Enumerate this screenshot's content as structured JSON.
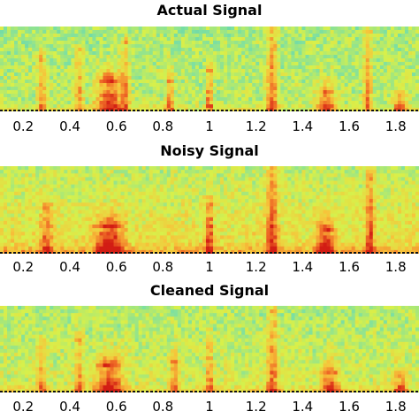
{
  "chart_data": [
    {
      "type": "heatmap",
      "title": "Actual Signal",
      "xlabel": "",
      "ylabel": "",
      "xlim": [
        0.1,
        1.9
      ],
      "xticks": [
        0.2,
        0.4,
        0.6,
        0.8,
        1,
        1.2,
        1.4,
        1.6,
        1.8
      ],
      "xtick_labels": [
        "0.2",
        "0.4",
        "0.6",
        "0.8",
        "1",
        "1.2",
        "1.4",
        "1.6",
        "1.8"
      ],
      "colormap": [
        "#3fc6c0",
        "#7fe0a0",
        "#d8f04a",
        "#f7c33a",
        "#ef6a26",
        "#d21d14"
      ],
      "noise_level": 0.15,
      "events": [
        {
          "x": 0.28,
          "width": 0.04,
          "intensity": 0.55,
          "height": 0.6
        },
        {
          "x": 0.44,
          "width": 0.04,
          "intensity": 0.5,
          "height": 0.7
        },
        {
          "x": 0.57,
          "width": 0.12,
          "intensity": 0.95,
          "height": 0.35
        },
        {
          "x": 0.64,
          "width": 0.04,
          "intensity": 0.5,
          "height": 0.8
        },
        {
          "x": 0.83,
          "width": 0.04,
          "intensity": 0.6,
          "height": 0.35
        },
        {
          "x": 1.0,
          "width": 0.03,
          "intensity": 0.9,
          "height": 0.45,
          "striped": true
        },
        {
          "x": 1.27,
          "width": 0.05,
          "intensity": 0.7,
          "height": 1.0
        },
        {
          "x": 1.5,
          "width": 0.08,
          "intensity": 0.85,
          "height": 0.2
        },
        {
          "x": 1.68,
          "width": 0.04,
          "intensity": 0.6,
          "height": 0.9
        },
        {
          "x": 1.82,
          "width": 0.06,
          "intensity": 0.75,
          "height": 0.15
        }
      ]
    },
    {
      "type": "heatmap",
      "title": "Noisy Signal",
      "xlabel": "",
      "ylabel": "",
      "xlim": [
        0.1,
        1.9
      ],
      "xticks": [
        0.2,
        0.4,
        0.6,
        0.8,
        1,
        1.2,
        1.4,
        1.6,
        1.8
      ],
      "xtick_labels": [
        "0.2",
        "0.4",
        "0.6",
        "0.8",
        "1",
        "1.2",
        "1.4",
        "1.6",
        "1.8"
      ],
      "colormap": [
        "#3fc6c0",
        "#7fe0a0",
        "#d8f04a",
        "#f7c33a",
        "#ef6a26",
        "#d21d14"
      ],
      "noise_level": 0.45,
      "events": [
        {
          "x": 0.3,
          "width": 0.05,
          "intensity": 0.55,
          "height": 0.5
        },
        {
          "x": 0.57,
          "width": 0.12,
          "intensity": 0.95,
          "height": 0.3
        },
        {
          "x": 1.0,
          "width": 0.03,
          "intensity": 0.95,
          "height": 0.5,
          "striped": true
        },
        {
          "x": 1.27,
          "width": 0.05,
          "intensity": 0.7,
          "height": 1.0
        },
        {
          "x": 1.5,
          "width": 0.08,
          "intensity": 0.85,
          "height": 0.25
        },
        {
          "x": 1.69,
          "width": 0.04,
          "intensity": 0.65,
          "height": 0.85
        }
      ]
    },
    {
      "type": "heatmap",
      "title": "Cleaned Signal",
      "xlabel": "",
      "ylabel": "",
      "xlim": [
        0.1,
        1.9
      ],
      "xticks": [
        0.2,
        0.4,
        0.6,
        0.8,
        1,
        1.2,
        1.4,
        1.6,
        1.8
      ],
      "xtick_labels": [
        "0.2",
        "0.4",
        "0.6",
        "0.8",
        "1",
        "1.2",
        "1.4",
        "1.6",
        "1.8"
      ],
      "colormap": [
        "#3fc6c0",
        "#7fe0a0",
        "#d8f04a",
        "#f7c33a",
        "#ef6a26",
        "#d21d14"
      ],
      "noise_level": 0.25,
      "events": [
        {
          "x": 0.28,
          "width": 0.04,
          "intensity": 0.5,
          "height": 0.5
        },
        {
          "x": 0.44,
          "width": 0.04,
          "intensity": 0.45,
          "height": 0.6
        },
        {
          "x": 0.57,
          "width": 0.12,
          "intensity": 0.9,
          "height": 0.3
        },
        {
          "x": 0.85,
          "width": 0.04,
          "intensity": 0.55,
          "height": 0.35
        },
        {
          "x": 1.0,
          "width": 0.03,
          "intensity": 0.8,
          "height": 0.5,
          "striped": true
        },
        {
          "x": 1.27,
          "width": 0.05,
          "intensity": 0.6,
          "height": 0.9
        },
        {
          "x": 1.52,
          "width": 0.08,
          "intensity": 0.8,
          "height": 0.2
        },
        {
          "x": 1.82,
          "width": 0.06,
          "intensity": 0.7,
          "height": 0.15
        }
      ]
    }
  ]
}
